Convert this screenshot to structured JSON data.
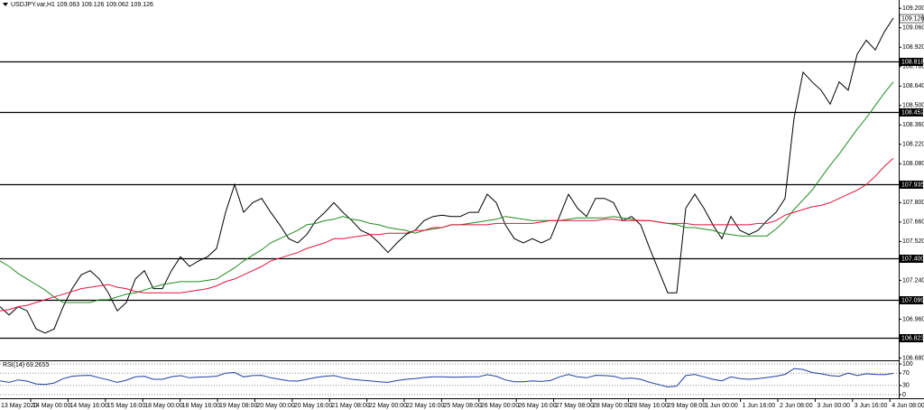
{
  "chart_data": [
    {
      "type": "line",
      "title": "USDJPY.var,H1  109.063 109.126 109.062 109.126",
      "ylim": [
        106.67,
        109.26
      ],
      "yticks": [
        {
          "value": 109.2,
          "label": "109.200"
        },
        {
          "value": 109.06,
          "label": "109.060"
        },
        {
          "value": 108.92,
          "label": "108.920"
        },
        {
          "value": 108.78,
          "label": "108.780"
        },
        {
          "value": 108.64,
          "label": "108.640"
        },
        {
          "value": 108.5,
          "label": "108.500"
        },
        {
          "value": 108.36,
          "label": "108.360"
        },
        {
          "value": 108.22,
          "label": "108.220"
        },
        {
          "value": 108.08,
          "label": "108.080"
        },
        {
          "value": 107.8,
          "label": "107.800"
        },
        {
          "value": 107.66,
          "label": "107.660"
        },
        {
          "value": 107.52,
          "label": "107.520"
        },
        {
          "value": 107.24,
          "label": "107.240"
        },
        {
          "value": 106.96,
          "label": "106.960"
        },
        {
          "value": 106.68,
          "label": "106.680"
        }
      ],
      "levels": [
        108.818,
        108.452,
        107.935,
        {
          "value": 107.4,
          "label": "107.400"
        },
        107.099,
        106.823
      ],
      "last_price": 109.126,
      "time_labels": [
        "13 May 2020",
        "14 May 00:00",
        "14 May 16:00",
        "15 May 16:00",
        "18 May 00:00",
        "18 May 16:00",
        "19 May 08:00",
        "20 May 00:00",
        "20 May 16:00",
        "21 May 08:00",
        "22 May 00:00",
        "22 May 16:00",
        "25 May 08:00",
        "26 May 00:00",
        "26 May 16:00",
        "27 May 08:00",
        "28 May 00:00",
        "28 May 16:00",
        "29 May 08:00",
        "1 Jun 00:00",
        "1 Jun 16:00",
        "2 Jun 08:00",
        "3 Jun 00:00",
        "3 Jun 16:00",
        "4 Jun 08:00"
      ],
      "series": [
        {
          "color": "#000000",
          "values": [
            107.05,
            106.99,
            107.05,
            107.02,
            106.89,
            106.86,
            106.89,
            107.05,
            107.18,
            107.28,
            107.31,
            107.25,
            107.15,
            107.02,
            107.08,
            107.25,
            107.31,
            107.18,
            107.18,
            107.31,
            107.41,
            107.34,
            107.38,
            107.41,
            107.47,
            107.73,
            107.93,
            107.73,
            107.8,
            107.83,
            107.73,
            107.64,
            107.54,
            107.51,
            107.57,
            107.67,
            107.73,
            107.8,
            107.73,
            107.67,
            107.6,
            107.57,
            107.51,
            107.44,
            107.51,
            107.57,
            107.6,
            107.67,
            107.7,
            107.71,
            107.7,
            107.7,
            107.73,
            107.73,
            107.86,
            107.8,
            107.64,
            107.54,
            107.51,
            107.54,
            107.51,
            107.54,
            107.7,
            107.86,
            107.76,
            107.7,
            107.83,
            107.83,
            107.8,
            107.67,
            107.7,
            107.64,
            107.47,
            107.31,
            107.15,
            107.15,
            107.76,
            107.86,
            107.76,
            107.64,
            107.54,
            107.7,
            107.6,
            107.57,
            107.6,
            107.67,
            107.73,
            107.83,
            108.41,
            108.74,
            108.67,
            108.61,
            108.51,
            108.67,
            108.61,
            108.87,
            108.97,
            108.9,
            109.03,
            109.13
          ]
        },
        {
          "color": "#1f8c1f",
          "values": [
            107.38,
            107.34,
            107.29,
            107.25,
            107.21,
            107.17,
            107.12,
            107.08,
            107.08,
            107.08,
            107.08,
            107.1,
            107.1,
            107.12,
            107.14,
            107.15,
            107.17,
            107.19,
            107.21,
            107.22,
            107.23,
            107.23,
            107.23,
            107.24,
            107.25,
            107.29,
            107.33,
            107.38,
            107.42,
            107.46,
            107.51,
            107.54,
            107.57,
            107.6,
            107.64,
            107.65,
            107.67,
            107.68,
            107.7,
            107.68,
            107.67,
            107.65,
            107.64,
            107.62,
            107.61,
            107.6,
            107.58,
            107.6,
            107.61,
            107.62,
            107.64,
            107.64,
            107.65,
            107.66,
            107.67,
            107.68,
            107.7,
            107.69,
            107.68,
            107.67,
            107.67,
            107.67,
            107.67,
            107.68,
            107.69,
            107.69,
            107.69,
            107.69,
            107.7,
            107.69,
            107.68,
            107.67,
            107.67,
            107.66,
            107.65,
            107.64,
            107.62,
            107.62,
            107.61,
            107.6,
            107.58,
            107.57,
            107.56,
            107.56,
            107.56,
            107.56,
            107.61,
            107.67,
            107.75,
            107.82,
            107.89,
            107.98,
            108.07,
            108.15,
            108.24,
            108.33,
            108.41,
            108.5,
            108.59,
            108.67
          ]
        },
        {
          "color": "#e0143c",
          "values": [
            107.02,
            107.03,
            107.05,
            107.06,
            107.08,
            107.1,
            107.12,
            107.14,
            107.16,
            107.18,
            107.19,
            107.2,
            107.21,
            107.19,
            107.18,
            107.16,
            107.15,
            107.15,
            107.15,
            107.15,
            107.15,
            107.16,
            107.17,
            107.18,
            107.2,
            107.23,
            107.25,
            107.28,
            107.31,
            107.34,
            107.38,
            107.4,
            107.42,
            107.44,
            107.47,
            107.49,
            107.51,
            107.54,
            107.54,
            107.55,
            107.56,
            107.57,
            107.57,
            107.58,
            107.58,
            107.58,
            107.6,
            107.6,
            107.62,
            107.62,
            107.64,
            107.64,
            107.64,
            107.64,
            107.64,
            107.65,
            107.65,
            107.65,
            107.65,
            107.65,
            107.66,
            107.67,
            107.67,
            107.67,
            107.67,
            107.67,
            107.67,
            107.68,
            107.68,
            107.67,
            107.67,
            107.67,
            107.67,
            107.66,
            107.65,
            107.65,
            107.65,
            107.64,
            107.64,
            107.64,
            107.64,
            107.64,
            107.64,
            107.64,
            107.65,
            107.65,
            107.67,
            107.71,
            107.73,
            107.75,
            107.77,
            107.78,
            107.8,
            107.83,
            107.86,
            107.89,
            107.93,
            107.99,
            108.06,
            108.12
          ]
        }
      ]
    },
    {
      "type": "line",
      "title": "RSI(14) 69.2655",
      "ylim": [
        0,
        100
      ],
      "yticks": [
        100,
        70,
        30,
        0
      ],
      "grid": true,
      "series": [
        {
          "color": "#1e3fa0",
          "values": [
            45,
            40,
            48,
            44,
            35,
            33,
            38,
            52,
            60,
            62,
            63,
            55,
            48,
            40,
            47,
            58,
            60,
            50,
            50,
            58,
            62,
            55,
            57,
            58,
            60,
            70,
            72,
            58,
            62,
            63,
            55,
            50,
            45,
            44,
            50,
            56,
            60,
            62,
            55,
            50,
            47,
            45,
            42,
            40,
            46,
            50,
            52,
            56,
            58,
            58,
            57,
            57,
            58,
            58,
            65,
            60,
            48,
            42,
            42,
            45,
            43,
            46,
            58,
            66,
            58,
            55,
            63,
            62,
            60,
            52,
            54,
            50,
            40,
            33,
            25,
            28,
            62,
            66,
            58,
            50,
            45,
            58,
            52,
            50,
            52,
            56,
            60,
            66,
            85,
            82,
            72,
            68,
            62,
            60,
            70,
            62,
            68,
            66,
            65,
            69
          ]
        }
      ]
    }
  ]
}
